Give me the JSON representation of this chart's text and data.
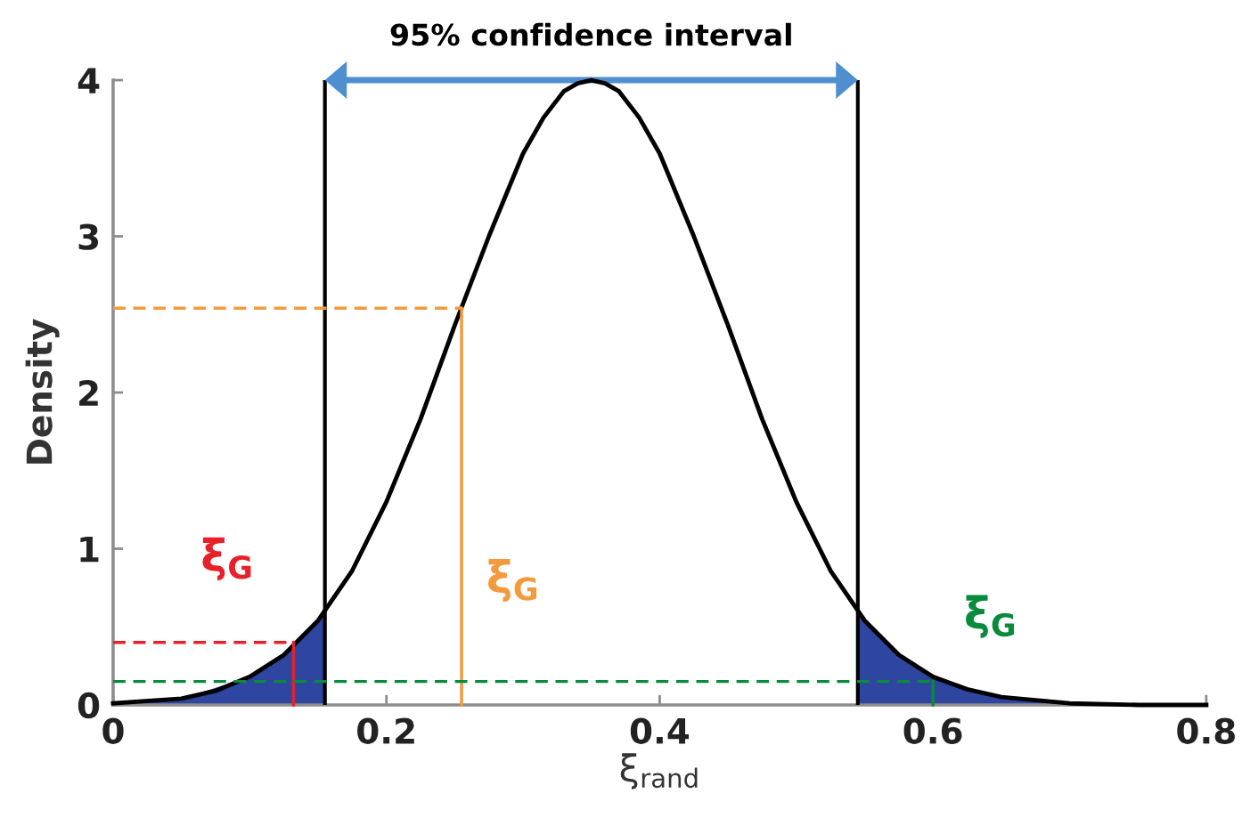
{
  "chart_data": {
    "type": "line",
    "xlabel": "ξ$_{rand}$",
    "ylabel": "Density",
    "xlim": [
      0,
      0.8
    ],
    "ylim": [
      0,
      4
    ],
    "xticks": [
      0,
      0.2,
      0.4,
      0.6,
      0.8
    ],
    "yticks": [
      0,
      1,
      2,
      3,
      4
    ],
    "grid": false,
    "legend": false,
    "series": [
      {
        "type": "area",
        "color": "#2e46a0",
        "x": [
          0,
          0.05,
          0.1,
          0.125,
          0.15,
          0.155
        ],
        "values": [
          0.0,
          0.04,
          0.18,
          0.32,
          0.54,
          0.58
        ]
      },
      {
        "type": "area",
        "color": "#2e46a0",
        "x": [
          0.545,
          0.55,
          0.575,
          0.6,
          0.625,
          0.65,
          0.675,
          0.7
        ],
        "values": [
          0.58,
          0.54,
          0.32,
          0.18,
          0.1,
          0.05,
          0.03,
          0.01
        ]
      },
      {
        "color": "#000000",
        "line_style": "solid",
        "x": [
          0,
          0.05,
          0.075,
          0.1,
          0.125,
          0.15,
          0.175,
          0.2,
          0.225,
          0.25,
          0.275,
          0.3,
          0.315,
          0.33,
          0.34,
          0.35,
          0.36,
          0.37,
          0.385,
          0.4,
          0.425,
          0.45,
          0.475,
          0.5,
          0.525,
          0.55,
          0.575,
          0.6,
          0.625,
          0.65,
          0.675,
          0.7,
          0.75,
          0.8
        ],
        "values": [
          0.01,
          0.04,
          0.09,
          0.18,
          0.32,
          0.54,
          0.86,
          1.3,
          1.83,
          2.43,
          3.0,
          3.53,
          3.76,
          3.93,
          3.98,
          4.0,
          3.98,
          3.93,
          3.76,
          3.53,
          3.0,
          2.43,
          1.83,
          1.3,
          0.86,
          0.54,
          0.32,
          0.18,
          0.1,
          0.05,
          0.03,
          0.01,
          0.0,
          0.0
        ]
      },
      {
        "color": "#e8202a",
        "line_style": "dashed",
        "x": [
          0,
          0.132
        ],
        "values": [
          0.4,
          0.4
        ]
      },
      {
        "color": "#e8202a",
        "line_style": "solid",
        "x": [
          0.132,
          0.132
        ],
        "values": [
          0,
          0.4
        ]
      },
      {
        "color": "#f39a3c",
        "line_style": "dashed",
        "x": [
          0,
          0.255
        ],
        "values": [
          2.54,
          2.54
        ]
      },
      {
        "color": "#f39a3c",
        "line_style": "solid",
        "x": [
          0.255,
          0.255
        ],
        "values": [
          0,
          2.54
        ]
      },
      {
        "color": "#0a8a3c",
        "line_style": "dashed",
        "x": [
          0,
          0.6
        ],
        "values": [
          0.15,
          0.15
        ]
      },
      {
        "color": "#0a8a3c",
        "line_style": "solid",
        "x": [
          0.6,
          0.6
        ],
        "values": [
          0,
          0.15
        ]
      }
    ],
    "ref_lines": [
      {
        "axis": "x",
        "value": 0.155,
        "color": "#000000"
      },
      {
        "axis": "x",
        "value": 0.545,
        "color": "#000000"
      }
    ],
    "title": "95% confidence interval",
    "annotations": [
      {
        "text": "ξ$_{G}$",
        "x": 0.132,
        "y": 0.4
      },
      {
        "text": "ξ$_{G}$",
        "x": 0.255,
        "y": 0.5
      },
      {
        "text": "ξ$_{G}$",
        "x": 0.6,
        "y": 0.15
      }
    ]
  }
}
